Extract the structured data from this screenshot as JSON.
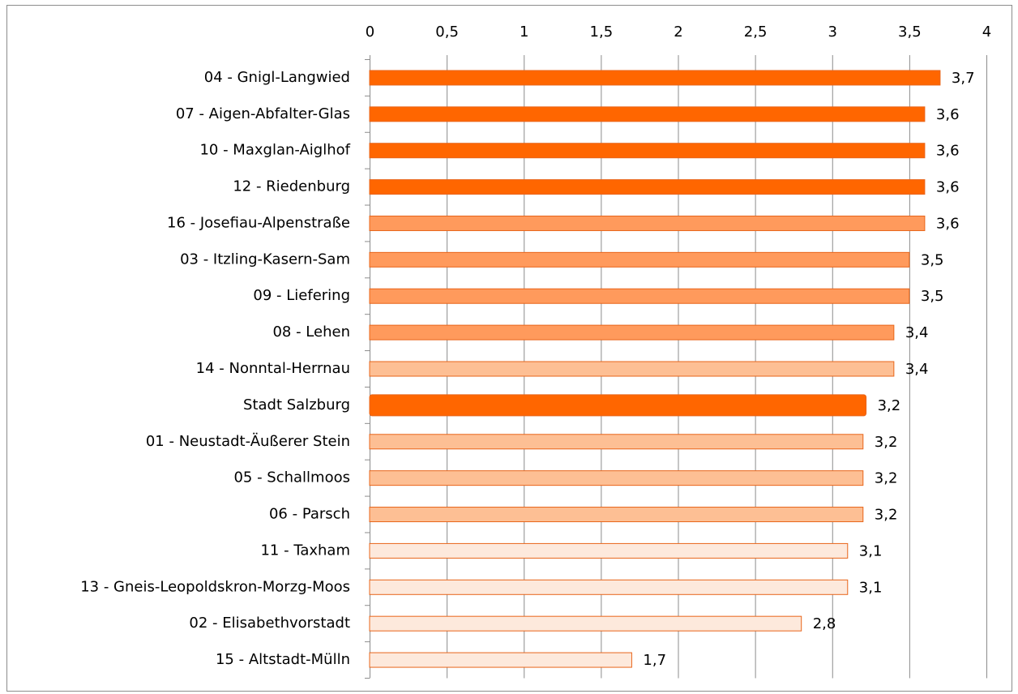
{
  "chart_data": {
    "type": "bar",
    "orientation": "horizontal",
    "categories": [
      "04 - Gnigl-Langwied",
      "07 - Aigen-Abfalter-Glas",
      "10 - Maxglan-Aiglhof",
      "12 - Riedenburg",
      "16 - Josefiau-Alpenstraße",
      "03 - Itzling-Kasern-Sam",
      "09 - Liefering",
      "08 - Lehen",
      "14 - Nonntal-Herrnau",
      "Stadt Salzburg",
      "01 - Neustadt-Äußerer Stein",
      "05 - Schallmoos",
      "06 - Parsch",
      "11 - Taxham",
      "13 - Gneis-Leopoldskron-Morzg-Moos",
      "02 - Elisabethvorstadt",
      "15 - Altstadt-Mülln"
    ],
    "values": [
      3.7,
      3.6,
      3.6,
      3.6,
      3.6,
      3.5,
      3.5,
      3.4,
      3.4,
      3.22,
      3.2,
      3.2,
      3.2,
      3.1,
      3.1,
      2.8,
      1.7
    ],
    "value_labels": [
      "3,7",
      "3,6",
      "3,6",
      "3,6",
      "3,6",
      "3,5",
      "3,5",
      "3,4",
      "3,4",
      "3,2",
      "3,2",
      "3,2",
      "3,2",
      "3,1",
      "3,1",
      "2,8",
      "1,7"
    ],
    "colors": [
      "#ff6600",
      "#ff6600",
      "#ff6600",
      "#ff6600",
      "#ff9a5c",
      "#ff9a5c",
      "#ff9a5c",
      "#ff9a5c",
      "#fdbf94",
      "#ff6600",
      "#fdbf94",
      "#fdbf94",
      "#fdbf94",
      "#fde9dc",
      "#fde9dc",
      "#fde9dc",
      "#fde9dc"
    ],
    "xlim": [
      0,
      4
    ],
    "xticks": [
      0,
      {
        "value": 0.5,
        "label": "0,5"
      },
      1,
      {
        "value": 1.5,
        "label": "1,5"
      },
      2,
      {
        "value": 2.5,
        "label": "2,5"
      },
      3,
      {
        "value": 3.5,
        "label": "3,5"
      },
      4
    ],
    "grid": true
  }
}
